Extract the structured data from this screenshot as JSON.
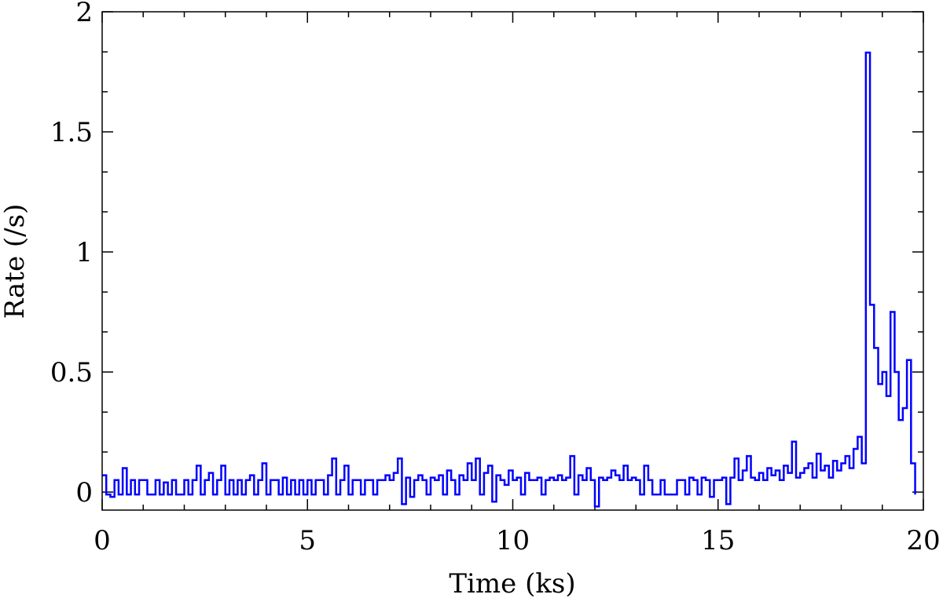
{
  "chart_data": {
    "type": "step-line",
    "xlabel": "Time (ks)",
    "ylabel": "Rate (/s)",
    "xlim": [
      0,
      20
    ],
    "ylim": [
      -0.075,
      2
    ],
    "xticks": [
      0,
      5,
      10,
      15,
      20
    ],
    "yticks": [
      0,
      0.5,
      1,
      1.5,
      2
    ],
    "xminorticks": [
      1,
      2,
      3,
      4,
      6,
      7,
      8,
      9,
      11,
      12,
      13,
      14,
      16,
      17,
      18,
      19
    ],
    "yminorticks": [
      0.167,
      0.333,
      0.667,
      0.833,
      1.167,
      1.333,
      1.667,
      1.833
    ],
    "color": "#0000ff",
    "x": [
      0.0,
      0.1,
      0.2,
      0.3,
      0.4,
      0.5,
      0.6,
      0.7,
      0.8,
      0.9,
      1.0,
      1.1,
      1.2,
      1.3,
      1.4,
      1.5,
      1.6,
      1.7,
      1.8,
      1.9,
      2.0,
      2.1,
      2.2,
      2.3,
      2.4,
      2.5,
      2.6,
      2.7,
      2.8,
      2.9,
      3.0,
      3.1,
      3.2,
      3.3,
      3.4,
      3.5,
      3.6,
      3.7,
      3.8,
      3.9,
      4.0,
      4.1,
      4.2,
      4.3,
      4.4,
      4.5,
      4.6,
      4.7,
      4.8,
      4.9,
      5.0,
      5.1,
      5.2,
      5.3,
      5.4,
      5.5,
      5.6,
      5.7,
      5.8,
      5.9,
      6.0,
      6.1,
      6.2,
      6.3,
      6.4,
      6.5,
      6.6,
      6.7,
      6.8,
      6.9,
      7.0,
      7.1,
      7.2,
      7.3,
      7.4,
      7.5,
      7.6,
      7.7,
      7.8,
      7.9,
      8.0,
      8.1,
      8.2,
      8.3,
      8.4,
      8.5,
      8.6,
      8.7,
      8.8,
      8.9,
      9.0,
      9.1,
      9.2,
      9.3,
      9.4,
      9.5,
      9.6,
      9.7,
      9.8,
      9.9,
      10.0,
      10.1,
      10.2,
      10.3,
      10.4,
      10.5,
      10.6,
      10.7,
      10.8,
      10.9,
      11.0,
      11.1,
      11.2,
      11.3,
      11.4,
      11.5,
      11.6,
      11.7,
      11.8,
      11.9,
      12.0,
      12.1,
      12.2,
      12.3,
      12.4,
      12.5,
      12.6,
      12.7,
      12.8,
      12.9,
      13.0,
      13.1,
      13.2,
      13.3,
      13.4,
      13.5,
      13.6,
      13.7,
      13.8,
      13.9,
      14.0,
      14.1,
      14.2,
      14.3,
      14.4,
      14.5,
      14.6,
      14.7,
      14.8,
      14.9,
      15.0,
      15.1,
      15.2,
      15.3,
      15.4,
      15.5,
      15.6,
      15.7,
      15.8,
      15.9,
      16.0,
      16.1,
      16.2,
      16.3,
      16.4,
      16.5,
      16.6,
      16.7,
      16.8,
      16.9,
      17.0,
      17.1,
      17.2,
      17.3,
      17.4,
      17.5,
      17.6,
      17.7,
      17.8,
      17.9,
      18.0,
      18.1,
      18.2,
      18.3,
      18.4,
      18.5,
      18.6,
      18.7,
      18.8,
      18.9,
      19.0,
      19.1,
      19.2,
      19.3,
      19.4,
      19.5,
      19.6,
      19.7,
      19.8
    ],
    "values": [
      0.07,
      -0.01,
      -0.02,
      0.05,
      -0.01,
      0.1,
      -0.01,
      0.05,
      -0.01,
      0.05,
      0.05,
      -0.01,
      -0.01,
      0.05,
      -0.01,
      0.04,
      -0.01,
      0.05,
      -0.01,
      -0.01,
      0.05,
      -0.01,
      0.05,
      0.11,
      -0.01,
      0.05,
      0.08,
      -0.01,
      0.05,
      0.11,
      -0.01,
      0.05,
      -0.01,
      0.05,
      -0.01,
      0.05,
      0.07,
      -0.01,
      0.05,
      0.12,
      -0.01,
      0.05,
      0.05,
      -0.01,
      0.06,
      -0.01,
      0.05,
      -0.01,
      0.05,
      -0.01,
      0.05,
      -0.01,
      0.05,
      0.05,
      -0.01,
      0.07,
      0.14,
      -0.01,
      0.05,
      0.11,
      -0.01,
      0.05,
      0.05,
      -0.01,
      0.05,
      0.05,
      -0.01,
      0.05,
      0.05,
      0.07,
      0.05,
      0.08,
      0.14,
      -0.05,
      0.06,
      -0.02,
      0.05,
      0.07,
      0.05,
      -0.01,
      0.06,
      0.05,
      0.07,
      -0.01,
      0.09,
      0.05,
      -0.01,
      0.07,
      0.05,
      0.12,
      0.05,
      0.14,
      -0.01,
      0.08,
      0.11,
      -0.04,
      0.07,
      0.05,
      0.03,
      0.09,
      0.05,
      0.06,
      -0.01,
      0.08,
      0.05,
      0.05,
      0.06,
      -0.01,
      0.05,
      0.06,
      0.05,
      0.07,
      0.05,
      0.06,
      0.15,
      -0.01,
      0.07,
      0.05,
      0.1,
      0.05,
      -0.06,
      0.06,
      0.05,
      0.06,
      0.09,
      0.07,
      0.05,
      0.11,
      0.05,
      0.06,
      0.05,
      -0.01,
      0.11,
      0.05,
      -0.01,
      -0.01,
      0.05,
      -0.01,
      -0.01,
      -0.01,
      0.05,
      0.05,
      -0.01,
      0.06,
      0.05,
      -0.01,
      0.06,
      0.05,
      -0.02,
      0.05,
      0.05,
      0.06,
      -0.05,
      0.06,
      0.14,
      0.05,
      0.09,
      0.15,
      0.06,
      0.05,
      0.08,
      0.05,
      0.1,
      0.07,
      0.09,
      0.05,
      0.11,
      0.08,
      0.21,
      0.06,
      0.08,
      0.1,
      0.12,
      0.06,
      0.16,
      0.09,
      0.11,
      0.06,
      0.13,
      0.09,
      0.12,
      0.15,
      0.1,
      0.18,
      0.23,
      0.12,
      1.83,
      0.78,
      0.6,
      0.45,
      0.5,
      0.4,
      0.75,
      0.5,
      0.3,
      0.35,
      0.55,
      0.12,
      -0.01
    ]
  }
}
